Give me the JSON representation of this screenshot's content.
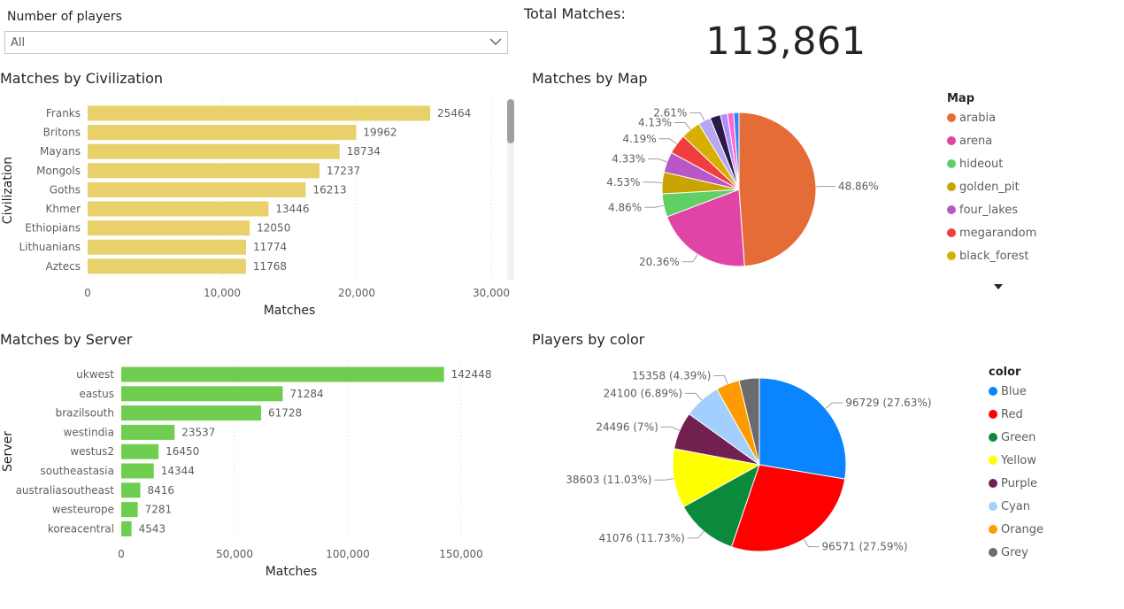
{
  "slicer": {
    "label": "Number of players",
    "value": "All",
    "icon": "chevron-down-icon"
  },
  "kpi": {
    "label": "Total Matches:",
    "value": "113,861"
  },
  "chart_data": [
    {
      "id": "civ",
      "type": "bar",
      "orientation": "horizontal",
      "title": "Matches by Civilization",
      "xlabel": "Matches",
      "ylabel": "Civilization",
      "categories": [
        "Franks",
        "Britons",
        "Mayans",
        "Mongols",
        "Goths",
        "Khmer",
        "Ethiopians",
        "Lithuanians",
        "Aztecs"
      ],
      "values": [
        25464,
        19962,
        18734,
        17237,
        16213,
        13446,
        12050,
        11774,
        11768
      ],
      "xlim": [
        0,
        30000
      ],
      "xticks": [
        0,
        10000,
        20000,
        30000
      ],
      "xtick_labels": [
        "0",
        "10,000",
        "20,000",
        "30,000"
      ],
      "color": "#e8d06b",
      "grid": "vertical dotted"
    },
    {
      "id": "map",
      "type": "pie",
      "title": "Matches by Map",
      "legend_title": "Map",
      "legend_position": "right",
      "slices": [
        {
          "name": "arabia",
          "percent": 48.86,
          "label": "48.86%",
          "color": "#e66c37"
        },
        {
          "name": "arena",
          "percent": 20.36,
          "label": "20.36%",
          "color": "#e044a7"
        },
        {
          "name": "hideout",
          "percent": 4.86,
          "label": "4.86%",
          "color": "#5fcf66"
        },
        {
          "name": "golden_pit",
          "percent": 4.53,
          "label": "4.53%",
          "color": "#c9a400"
        },
        {
          "name": "four_lakes",
          "percent": 4.33,
          "label": "4.33%",
          "color": "#b858c7"
        },
        {
          "name": "megarandom",
          "percent": 4.19,
          "label": "4.19%",
          "color": "#f03d3d"
        },
        {
          "name": "black_forest",
          "percent": 4.13,
          "label": "4.13%",
          "color": "#d6b000"
        },
        {
          "name": "",
          "percent": 2.61,
          "label": "2.61%",
          "color": "#b7a6f2"
        },
        {
          "name": "",
          "percent": 2.2,
          "label": "",
          "color": "#2b1b44"
        },
        {
          "name": "",
          "percent": 1.5,
          "label": "",
          "color": "#b28dff"
        },
        {
          "name": "",
          "percent": 1.3,
          "label": "",
          "color": "#ff66cc"
        },
        {
          "name": "",
          "percent": 1.13,
          "label": "",
          "color": "#2f86ff"
        }
      ]
    },
    {
      "id": "server",
      "type": "bar",
      "orientation": "horizontal",
      "title": "Matches by Server",
      "xlabel": "Matches",
      "ylabel": "Server",
      "categories": [
        "ukwest",
        "eastus",
        "brazilsouth",
        "westindia",
        "westus2",
        "southeastasia",
        "australiasoutheast",
        "westeurope",
        "koreacentral"
      ],
      "values": [
        142448,
        71284,
        61728,
        23537,
        16450,
        14344,
        8416,
        7281,
        4543
      ],
      "xlim": [
        0,
        150000
      ],
      "xticks": [
        0,
        50000,
        100000,
        150000
      ],
      "xtick_labels": [
        "0",
        "50,000",
        "100,000",
        "150,000"
      ],
      "color": "#6fce4f",
      "grid": "vertical dotted"
    },
    {
      "id": "color",
      "type": "pie",
      "title": "Players by color",
      "legend_title": "color",
      "legend_position": "right",
      "slices": [
        {
          "name": "Blue",
          "value": 96729,
          "label": "96729 (27.63%)",
          "color": "#0a84ff"
        },
        {
          "name": "Red",
          "value": 96571,
          "label": "96571 (27.59%)",
          "color": "#ff0000"
        },
        {
          "name": "Green",
          "value": 41076,
          "label": "41076 (11.73%)",
          "color": "#0c8a3b"
        },
        {
          "name": "Yellow",
          "value": 38603,
          "label": "38603 (11.03%)",
          "color": "#ffff00"
        },
        {
          "name": "Purple",
          "value": 24496,
          "label": "24496 (7%)",
          "color": "#722050"
        },
        {
          "name": "Cyan",
          "value": 24100,
          "label": "24100 (6.89%)",
          "color": "#a3cfff"
        },
        {
          "name": "Orange",
          "value": 15358,
          "label": "15358 (4.39%)",
          "color": "#ff9a00"
        },
        {
          "name": "Grey",
          "value": 13200,
          "label": "",
          "color": "#6b6b6b"
        }
      ]
    }
  ]
}
